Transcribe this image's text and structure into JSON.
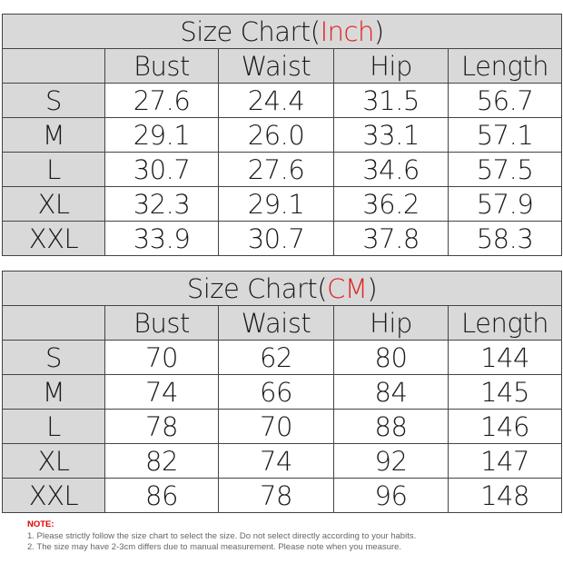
{
  "tables": [
    {
      "title": "Size Chart(",
      "unit": "Inch",
      "close": ")",
      "headers": [
        "Bust",
        "Waist",
        "Hip",
        "Length"
      ],
      "rows": [
        {
          "size": "S",
          "values": [
            "27.6",
            "24.4",
            "31.5",
            "56.7"
          ]
        },
        {
          "size": "M",
          "values": [
            "29.1",
            "26.0",
            "33.1",
            "57.1"
          ]
        },
        {
          "size": "L",
          "values": [
            "30.7",
            "27.6",
            "34.6",
            "57.5"
          ]
        },
        {
          "size": "XL",
          "values": [
            "32.3",
            "29.1",
            "36.2",
            "57.9"
          ]
        },
        {
          "size": "XXL",
          "values": [
            "33.9",
            "30.7",
            "37.8",
            "58.3"
          ]
        }
      ]
    },
    {
      "title": "Size Chart(",
      "unit": "CM",
      "close": ")",
      "headers": [
        "Bust",
        "Waist",
        "Hip",
        "Length"
      ],
      "rows": [
        {
          "size": "S",
          "values": [
            "70",
            "62",
            "80",
            "144"
          ]
        },
        {
          "size": "M",
          "values": [
            "74",
            "66",
            "84",
            "145"
          ]
        },
        {
          "size": "L",
          "values": [
            "78",
            "70",
            "88",
            "146"
          ]
        },
        {
          "size": "XL",
          "values": [
            "82",
            "74",
            "92",
            "147"
          ]
        },
        {
          "size": "XXL",
          "values": [
            "86",
            "78",
            "96",
            "148"
          ]
        }
      ]
    }
  ],
  "note": {
    "heading": "NOTE:",
    "lines": [
      "1. Please strictly follow the size chart  to select the size. Do not select directly according to your habits.",
      "2. The size may have 2-3cm differs due to manual measurement. Please note when you measure."
    ]
  },
  "colors": {
    "header_bg": "#d9d9d9",
    "unit_red": "#e02020",
    "note_red": "#dd0000"
  }
}
